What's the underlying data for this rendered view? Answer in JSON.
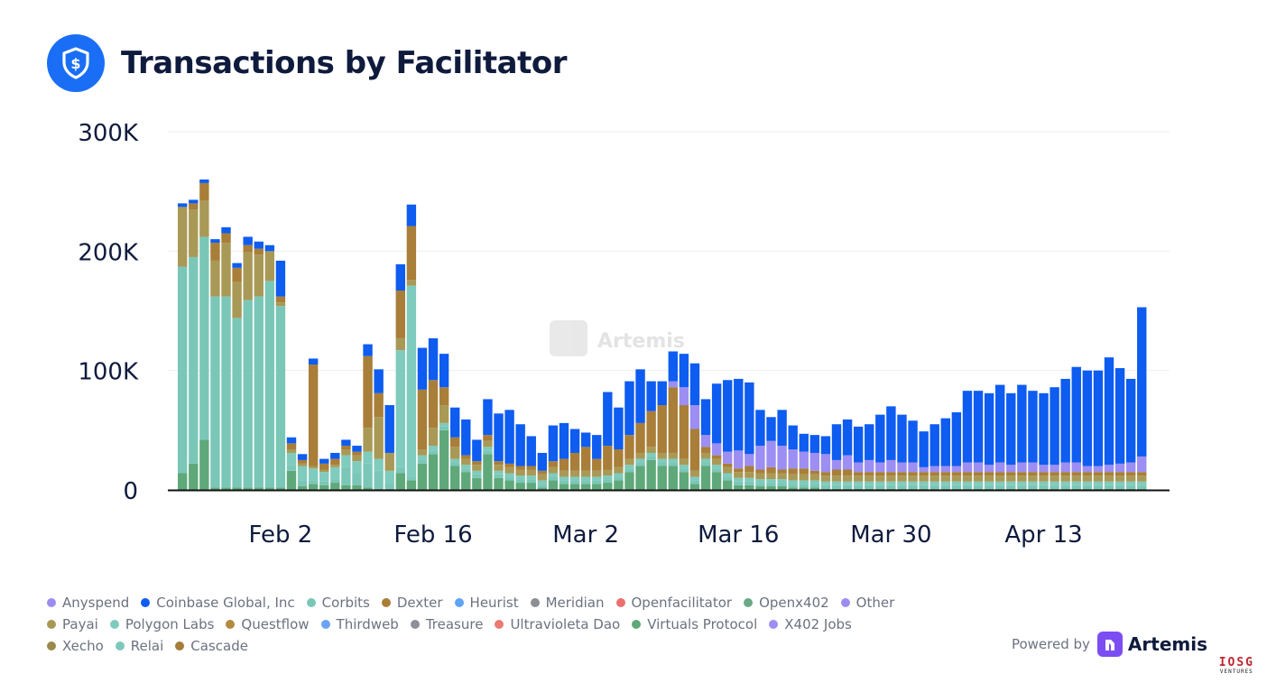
{
  "header": {
    "title": "Transactions by Facilitator",
    "icon": "shield-dollar-icon"
  },
  "watermark": "Artemis",
  "powered_by": {
    "label": "Powered by",
    "brand": "Artemis"
  },
  "corner_logo": {
    "text": "IOSG",
    "sub": "VENTURES"
  },
  "colors": {
    "Anyspend": "#9b8cf2",
    "Coinbase Global, Inc": "#0e5cf0",
    "Corbits": "#7ac7b8",
    "Dexter": "#a87e38",
    "Heurist": "#5ea3f5",
    "Meridian": "#8b8f94",
    "Openfacilitator": "#ea7070",
    "Openx402": "#6aa985",
    "Other": "#9d8cf0",
    "Payai": "#a99956",
    "Polygon Labs": "#7fcbbd",
    "Questflow": "#b38a3e",
    "Thirdweb": "#6aa4f4",
    "Treasure": "#8d9096",
    "Ultravioleta Dao": "#ea7a72",
    "Virtuals Protocol": "#5fa87a",
    "X402 Jobs": "#9c8ef2",
    "Xecho": "#9a8a4c",
    "Relai": "#7cc9b9",
    "Cascade": "#a57c3b"
  },
  "legend": [
    [
      "Anyspend",
      "Coinbase Global, Inc",
      "Corbits",
      "Dexter",
      "Heurist",
      "Meridian",
      "Openfacilitator",
      "Openx402",
      "Other"
    ],
    [
      "Payai",
      "Polygon Labs",
      "Questflow",
      "Thirdweb",
      "Treasure",
      "Ultravioleta Dao",
      "Virtuals Protocol",
      "X402 Jobs"
    ],
    [
      "Xecho",
      "Relai",
      "Cascade"
    ]
  ],
  "chart_data": {
    "type": "bar",
    "stacked": true,
    "title": "Transactions by Facilitator",
    "xlabel": "",
    "ylabel": "",
    "ylim": [
      0,
      300000
    ],
    "y_ticks": [
      0,
      100000,
      200000,
      300000
    ],
    "y_tick_labels": [
      "0",
      "100K",
      "200K",
      "300K"
    ],
    "grid": true,
    "legend_position": "bottom",
    "x_tick_labels": [
      {
        "label": "Feb 2",
        "day": 9
      },
      {
        "label": "Feb 16",
        "day": 23
      },
      {
        "label": "Mar 2",
        "day": 37
      },
      {
        "label": "Mar 16",
        "day": 51
      },
      {
        "label": "Mar 30",
        "day": 65
      },
      {
        "label": "Apr 13",
        "day": 79
      }
    ],
    "x_start": "Jan 24",
    "day_indices": [
      0,
      1,
      2,
      3,
      4,
      5,
      6,
      7,
      8,
      9,
      10,
      11,
      12,
      13,
      14,
      15,
      16,
      17,
      18,
      19,
      20,
      21,
      22,
      23,
      24,
      25,
      26,
      27,
      28,
      29,
      30,
      31,
      32,
      33,
      34,
      35,
      36,
      37,
      38,
      39,
      40,
      41,
      42,
      43,
      44,
      45,
      46,
      47,
      48,
      49,
      50,
      51,
      52,
      53,
      54,
      55,
      56,
      57,
      58,
      59,
      60,
      61,
      62,
      63,
      64,
      65,
      66,
      67,
      68,
      69,
      70,
      71,
      72,
      73,
      74,
      75,
      76,
      77,
      78,
      79,
      80,
      81,
      82,
      83,
      84,
      85,
      86,
      87,
      88
    ],
    "series": [
      {
        "name": "Virtuals Protocol",
        "values": [
          14000,
          22000,
          42000,
          2000,
          2000,
          2000,
          2000,
          2000,
          2000,
          2000,
          16000,
          3000,
          5000,
          4000,
          6000,
          4000,
          4000,
          2000,
          1000,
          1000,
          14000,
          8000,
          22000,
          30000,
          50000,
          20000,
          15000,
          10000,
          30000,
          10000,
          8000,
          6000,
          6000,
          2000,
          8000,
          5000,
          5000,
          5000,
          5000,
          6000,
          8000,
          15000,
          20000,
          25000,
          20000,
          20000,
          15000,
          5000,
          20000,
          15000,
          8000,
          4000,
          4000,
          3000,
          3000,
          3000,
          2000,
          2000,
          2000,
          1000,
          1000,
          1000,
          1000,
          1000,
          1000,
          1000,
          1000,
          1000,
          1000,
          1000,
          1000,
          1000,
          1000,
          1000,
          1000,
          1000,
          1000,
          1000,
          1000,
          1000,
          1000,
          1000,
          1000,
          1000,
          1000,
          1000,
          1000,
          1000,
          1000
        ]
      },
      {
        "name": "Corbits",
        "values": [
          173000,
          173000,
          170000,
          160000,
          160000,
          142000,
          157000,
          160000,
          173000,
          152000,
          5000,
          5000,
          3000,
          3000,
          3000,
          15000,
          10000,
          20000,
          15000,
          5000,
          5000,
          3000,
          3000,
          3000,
          3000,
          3000,
          3000,
          3000,
          3000,
          3000,
          3000,
          3000,
          3000,
          3000,
          3000,
          3000,
          3000,
          3000,
          3000,
          3000,
          3000,
          3000,
          3000,
          3000,
          3000,
          3000,
          3000,
          3000,
          3000,
          3000,
          3000,
          3000,
          3000,
          3000,
          3000,
          3000,
          3000,
          3000,
          3000,
          3000,
          3000,
          3000,
          3000,
          3000,
          3000,
          3000,
          3000,
          3000,
          3000,
          3000,
          3000,
          3000,
          3000,
          3000,
          3000,
          3000,
          3000,
          3000,
          3000,
          3000,
          3000,
          3000,
          3000,
          3000,
          3000,
          3000,
          3000,
          3000,
          3000
        ]
      },
      {
        "name": "Polygon Labs",
        "values": [
          0,
          0,
          0,
          0,
          0,
          0,
          0,
          0,
          0,
          0,
          10000,
          12000,
          10000,
          8000,
          10000,
          10000,
          10000,
          10000,
          10000,
          10000,
          98000,
          160000,
          4000,
          4000,
          3000,
          3000,
          3000,
          3000,
          3000,
          3000,
          3000,
          3000,
          3000,
          3000,
          3000,
          3000,
          3000,
          3000,
          3000,
          3000,
          3000,
          3000,
          3000,
          3000,
          3000,
          3000,
          3000,
          3000,
          3000,
          3000,
          3000,
          3000,
          3000,
          3000,
          3000,
          3000,
          3000,
          3000,
          3000,
          3000,
          3000,
          3000,
          3000,
          3000,
          3000,
          3000,
          3000,
          3000,
          3000,
          3000,
          3000,
          3000,
          3000,
          3000,
          3000,
          3000,
          3000,
          3000,
          3000,
          3000,
          3000,
          3000,
          3000,
          3000,
          3000,
          3000,
          3000,
          3000,
          3000
        ]
      },
      {
        "name": "Payai",
        "values": [
          50000,
          40000,
          30000,
          30000,
          45000,
          30000,
          40000,
          35000,
          25000,
          3000,
          3000,
          2000,
          2000,
          2000,
          2000,
          5000,
          5000,
          20000,
          35000,
          15000,
          10000,
          5000,
          5000,
          15000,
          15000,
          10000,
          5000,
          5000,
          5000,
          5000,
          5000,
          5000,
          5000,
          5000,
          5000,
          5000,
          5000,
          5000,
          5000,
          5000,
          5000,
          5000,
          5000,
          5000,
          5000,
          5000,
          5000,
          5000,
          5000,
          5000,
          5000,
          5000,
          5000,
          5000,
          5000,
          5000,
          5000,
          5000,
          5000,
          5000,
          5000,
          5000,
          5000,
          5000,
          5000,
          5000,
          5000,
          5000,
          5000,
          5000,
          5000,
          5000,
          5000,
          5000,
          5000,
          5000,
          5000,
          5000,
          5000,
          5000,
          5000,
          5000,
          5000,
          5000,
          5000,
          5000,
          5000,
          5000,
          5000
        ]
      },
      {
        "name": "Dexter",
        "values": [
          0,
          5000,
          15000,
          15000,
          8000,
          12000,
          6000,
          5000,
          0,
          5000,
          5000,
          3000,
          85000,
          5000,
          5000,
          3000,
          3000,
          60000,
          20000,
          0,
          40000,
          45000,
          50000,
          40000,
          15000,
          8000,
          3000,
          3000,
          5000,
          3000,
          3000,
          3000,
          3000,
          3000,
          5000,
          10000,
          15000,
          20000,
          10000,
          20000,
          15000,
          20000,
          25000,
          30000,
          40000,
          55000,
          45000,
          35000,
          5000,
          3000,
          3000,
          3000,
          5000,
          3000,
          5000,
          3000,
          5000,
          5000,
          3000,
          3000,
          5000,
          5000,
          3000,
          3000,
          3000,
          3000,
          3000,
          3000,
          3000,
          3000,
          3000,
          3000,
          3000,
          3000,
          3000,
          3000,
          3000,
          3000,
          3000,
          3000,
          3000,
          3000,
          3000,
          3000,
          3000,
          3000,
          3000,
          3000,
          3000
        ]
      },
      {
        "name": "X402 Jobs",
        "values": [
          0,
          0,
          0,
          0,
          0,
          0,
          0,
          0,
          0,
          0,
          0,
          0,
          0,
          0,
          0,
          0,
          0,
          0,
          0,
          0,
          0,
          0,
          0,
          0,
          0,
          0,
          0,
          0,
          0,
          0,
          0,
          0,
          0,
          0,
          0,
          0,
          0,
          0,
          0,
          0,
          0,
          0,
          0,
          0,
          0,
          5000,
          15000,
          20000,
          10000,
          10000,
          10000,
          15000,
          10000,
          20000,
          22000,
          20000,
          16000,
          14000,
          15000,
          15000,
          8000,
          12000,
          8000,
          10000,
          8000,
          10000,
          8000,
          8000,
          4000,
          5000,
          5000,
          5000,
          8000,
          8000,
          6000,
          8000,
          6000,
          8000,
          8000,
          6000,
          6000,
          8000,
          8000,
          5000,
          5000,
          6000,
          7000,
          8000,
          13000
        ]
      },
      {
        "name": "Coinbase Global, Inc",
        "values": [
          3000,
          3000,
          3000,
          3000,
          5000,
          4000,
          7000,
          6000,
          5000,
          30000,
          5000,
          5000,
          5000,
          4000,
          5000,
          5000,
          5000,
          10000,
          20000,
          40000,
          22000,
          18000,
          35000,
          35000,
          28000,
          25000,
          30000,
          18000,
          30000,
          40000,
          45000,
          35000,
          25000,
          15000,
          30000,
          30000,
          20000,
          12000,
          20000,
          45000,
          35000,
          45000,
          45000,
          25000,
          20000,
          25000,
          28000,
          35000,
          30000,
          50000,
          60000,
          60000,
          60000,
          30000,
          20000,
          30000,
          20000,
          15000,
          15000,
          15000,
          30000,
          30000,
          30000,
          30000,
          40000,
          45000,
          40000,
          35000,
          30000,
          35000,
          40000,
          45000,
          60000,
          60000,
          60000,
          65000,
          60000,
          65000,
          60000,
          60000,
          65000,
          70000,
          80000,
          80000,
          80000,
          90000,
          80000,
          70000,
          125000
        ]
      }
    ]
  }
}
